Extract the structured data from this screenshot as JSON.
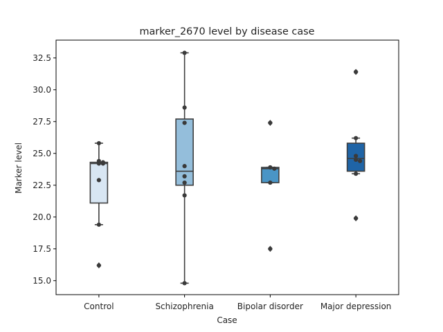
{
  "chart_data": {
    "type": "box",
    "title": "marker_2670 level by disease case",
    "xlabel": "Case",
    "ylabel": "Marker level",
    "categories": [
      "Control",
      "Schizophrenia",
      "Bipolar disorder",
      "Major depression"
    ],
    "ylim": [
      13.9,
      33.9
    ],
    "yticks": [
      15.0,
      17.5,
      20.0,
      22.5,
      25.0,
      27.5,
      30.0,
      32.5
    ],
    "ytick_labels": [
      "15.0",
      "17.5",
      "20.0",
      "22.5",
      "25.0",
      "27.5",
      "30.0",
      "32.5"
    ],
    "grid": false,
    "legend": "none",
    "colors": [
      "#d8e6f3",
      "#94bedb",
      "#4a95c6",
      "#1f64a6"
    ],
    "boxes": [
      {
        "category": "Control",
        "q1": 21.1,
        "median": 24.2,
        "q3": 24.3,
        "whisker_low": 19.4,
        "whisker_high": 25.8,
        "outliers": [
          16.2
        ],
        "points": [
          25.8,
          24.2,
          24.2,
          24.4,
          24.3,
          22.9,
          19.4,
          16.2
        ]
      },
      {
        "category": "Schizophrenia",
        "q1": 22.5,
        "median": 23.6,
        "q3": 27.7,
        "whisker_low": 14.8,
        "whisker_high": 32.9,
        "outliers": [],
        "points": [
          32.9,
          28.6,
          27.4,
          24.0,
          23.2,
          22.7,
          21.7,
          14.8
        ]
      },
      {
        "category": "Bipolar disorder",
        "q1": 22.7,
        "median": 23.8,
        "q3": 23.9,
        "whisker_low": 22.7,
        "whisker_high": 23.9,
        "outliers": [
          27.4,
          17.5
        ],
        "points": [
          27.4,
          23.9,
          23.8,
          22.7,
          17.5
        ]
      },
      {
        "category": "Major depression",
        "q1": 23.6,
        "median": 24.6,
        "q3": 25.8,
        "whisker_low": 23.4,
        "whisker_high": 26.2,
        "outliers": [
          31.4,
          19.9
        ],
        "points": [
          31.4,
          26.2,
          24.8,
          24.5,
          24.4,
          23.4,
          19.9
        ]
      }
    ]
  }
}
